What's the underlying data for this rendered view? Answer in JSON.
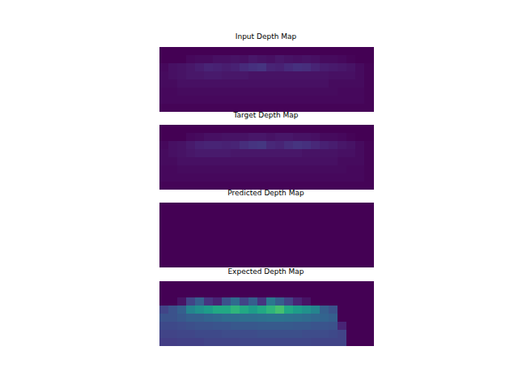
{
  "chart_data": [
    {
      "type": "heatmap",
      "title": "Input Depth Map",
      "color": "viridis",
      "color_range": [
        0,
        1
      ],
      "tick_labels": false,
      "cells": [
        [
          0,
          0,
          0,
          0,
          0,
          0,
          0,
          0,
          0,
          0,
          0,
          0,
          0,
          0,
          0,
          0,
          0,
          0,
          0,
          0,
          0,
          0,
          0,
          0
        ],
        [
          0,
          0,
          0,
          0.02,
          0.03,
          0.03,
          0.04,
          0.04,
          0.05,
          0.04,
          0.06,
          0.05,
          0.04,
          0.06,
          0.05,
          0.04,
          0.05,
          0.04,
          0.03,
          0.03,
          0.02,
          0.01,
          0,
          0
        ],
        [
          0.02,
          0.04,
          0.05,
          0.06,
          0.08,
          0.1,
          0.09,
          0.08,
          0.09,
          0.12,
          0.14,
          0.15,
          0.1,
          0.09,
          0.12,
          0.14,
          0.13,
          0.1,
          0.08,
          0.07,
          0.06,
          0.05,
          0.03,
          0.01
        ],
        [
          0.03,
          0.04,
          0.05,
          0.06,
          0.06,
          0.07,
          0.07,
          0.06,
          0.06,
          0.06,
          0.05,
          0.05,
          0.05,
          0.05,
          0.05,
          0.05,
          0.05,
          0.05,
          0.05,
          0.04,
          0.04,
          0.04,
          0.03,
          0.01
        ],
        [
          0.03,
          0.03,
          0.04,
          0.04,
          0.04,
          0.04,
          0.04,
          0.04,
          0.04,
          0.04,
          0.04,
          0.04,
          0.04,
          0.04,
          0.04,
          0.04,
          0.04,
          0.04,
          0.04,
          0.03,
          0.03,
          0.03,
          0.03,
          0.01
        ],
        [
          0.02,
          0.02,
          0.03,
          0.03,
          0.03,
          0.03,
          0.03,
          0.03,
          0.03,
          0.03,
          0.03,
          0.03,
          0.03,
          0.03,
          0.03,
          0.03,
          0.03,
          0.03,
          0.03,
          0.03,
          0.02,
          0.02,
          0.02,
          0.01
        ],
        [
          0.02,
          0.02,
          0.02,
          0.02,
          0.02,
          0.02,
          0.02,
          0.02,
          0.02,
          0.02,
          0.02,
          0.02,
          0.02,
          0.02,
          0.02,
          0.02,
          0.02,
          0.02,
          0.02,
          0.02,
          0.02,
          0.02,
          0.02,
          0.01
        ],
        [
          0.01,
          0.01,
          0.01,
          0.01,
          0.01,
          0.01,
          0.01,
          0.01,
          0.01,
          0.01,
          0.01,
          0.01,
          0.01,
          0.01,
          0.01,
          0.01,
          0.01,
          0.01,
          0.01,
          0.01,
          0.01,
          0.01,
          0.01,
          0.01
        ]
      ]
    },
    {
      "type": "heatmap",
      "title": "Target Depth Map",
      "color": "viridis",
      "color_range": [
        0,
        1
      ],
      "tick_labels": false,
      "cells": [
        [
          0,
          0,
          0,
          0,
          0,
          0,
          0,
          0,
          0,
          0,
          0,
          0,
          0,
          0,
          0,
          0,
          0,
          0,
          0,
          0,
          0,
          0,
          0,
          0
        ],
        [
          0,
          0,
          0,
          0.02,
          0.03,
          0.04,
          0.04,
          0.05,
          0.05,
          0.05,
          0.06,
          0.06,
          0.05,
          0.06,
          0.06,
          0.05,
          0.05,
          0.04,
          0.03,
          0.03,
          0.02,
          0.01,
          0,
          0
        ],
        [
          0.02,
          0.04,
          0.05,
          0.07,
          0.09,
          0.1,
          0.1,
          0.09,
          0.1,
          0.13,
          0.15,
          0.16,
          0.11,
          0.1,
          0.13,
          0.15,
          0.14,
          0.11,
          0.09,
          0.08,
          0.06,
          0.05,
          0.03,
          0.01
        ],
        [
          0.03,
          0.04,
          0.05,
          0.06,
          0.07,
          0.07,
          0.07,
          0.07,
          0.06,
          0.06,
          0.06,
          0.06,
          0.06,
          0.06,
          0.06,
          0.06,
          0.05,
          0.05,
          0.05,
          0.05,
          0.04,
          0.04,
          0.03,
          0.01
        ],
        [
          0.03,
          0.03,
          0.04,
          0.04,
          0.04,
          0.04,
          0.04,
          0.04,
          0.04,
          0.04,
          0.04,
          0.04,
          0.04,
          0.04,
          0.04,
          0.04,
          0.04,
          0.04,
          0.04,
          0.04,
          0.03,
          0.03,
          0.03,
          0.01
        ],
        [
          0.02,
          0.02,
          0.03,
          0.03,
          0.03,
          0.03,
          0.03,
          0.03,
          0.03,
          0.03,
          0.03,
          0.03,
          0.03,
          0.03,
          0.03,
          0.03,
          0.03,
          0.03,
          0.03,
          0.03,
          0.03,
          0.02,
          0.02,
          0.01
        ],
        [
          0.02,
          0.02,
          0.02,
          0.02,
          0.02,
          0.02,
          0.02,
          0.02,
          0.02,
          0.02,
          0.02,
          0.02,
          0.02,
          0.02,
          0.02,
          0.02,
          0.02,
          0.02,
          0.02,
          0.02,
          0.02,
          0.02,
          0.02,
          0.01
        ],
        [
          0.01,
          0.01,
          0.01,
          0.01,
          0.01,
          0.01,
          0.01,
          0.01,
          0.01,
          0.01,
          0.01,
          0.01,
          0.01,
          0.01,
          0.01,
          0.01,
          0.01,
          0.01,
          0.01,
          0.01,
          0.01,
          0.01,
          0.01,
          0.01
        ]
      ]
    },
    {
      "type": "heatmap",
      "title": "Predicted Depth Map",
      "color": "viridis",
      "color_range": [
        0,
        1
      ],
      "tick_labels": false,
      "cells": [
        [
          0,
          0,
          0,
          0,
          0,
          0,
          0,
          0,
          0,
          0,
          0,
          0,
          0,
          0,
          0,
          0,
          0,
          0,
          0,
          0,
          0,
          0,
          0,
          0
        ],
        [
          0,
          0,
          0,
          0,
          0,
          0,
          0,
          0,
          0,
          0,
          0,
          0,
          0,
          0,
          0,
          0,
          0,
          0,
          0,
          0,
          0,
          0,
          0,
          0
        ],
        [
          0,
          0,
          0,
          0,
          0,
          0,
          0,
          0,
          0,
          0,
          0,
          0,
          0,
          0,
          0,
          0,
          0,
          0,
          0,
          0,
          0,
          0,
          0,
          0
        ],
        [
          0,
          0,
          0,
          0,
          0,
          0,
          0,
          0,
          0,
          0,
          0,
          0,
          0,
          0,
          0,
          0,
          0,
          0,
          0,
          0,
          0,
          0,
          0,
          0
        ],
        [
          0,
          0,
          0,
          0,
          0,
          0,
          0,
          0,
          0,
          0,
          0,
          0,
          0,
          0,
          0,
          0,
          0,
          0,
          0,
          0,
          0,
          0,
          0,
          0
        ],
        [
          0,
          0,
          0,
          0,
          0,
          0,
          0,
          0,
          0,
          0,
          0,
          0,
          0,
          0,
          0,
          0,
          0,
          0,
          0,
          0,
          0,
          0,
          0,
          0
        ],
        [
          0,
          0,
          0,
          0,
          0,
          0,
          0,
          0,
          0,
          0,
          0,
          0,
          0,
          0,
          0,
          0,
          0,
          0,
          0,
          0,
          0,
          0,
          0,
          0
        ],
        [
          0,
          0,
          0,
          0,
          0,
          0,
          0,
          0,
          0,
          0,
          0,
          0,
          0,
          0,
          0,
          0,
          0,
          0,
          0,
          0,
          0,
          0,
          0,
          0
        ]
      ]
    },
    {
      "type": "heatmap",
      "title": "Expected Depth Map",
      "color": "viridis",
      "color_range": [
        0,
        1
      ],
      "tick_labels": false,
      "cells": [
        [
          0,
          0,
          0,
          0,
          0,
          0,
          0,
          0,
          0,
          0,
          0,
          0,
          0,
          0,
          0,
          0,
          0,
          0,
          0,
          0,
          0,
          0,
          0,
          0
        ],
        [
          0,
          0,
          0,
          0,
          0,
          0,
          0,
          0,
          0,
          0,
          0,
          0,
          0,
          0,
          0,
          0,
          0,
          0,
          0,
          0,
          0,
          0,
          0,
          0
        ],
        [
          0,
          0,
          0.05,
          0.2,
          0.3,
          0.15,
          0.1,
          0.25,
          0.35,
          0.2,
          0.3,
          0.15,
          0.4,
          0.3,
          0.2,
          0.1,
          0.05,
          0,
          0,
          0,
          0,
          0,
          0,
          0
        ],
        [
          0.2,
          0.25,
          0.3,
          0.45,
          0.5,
          0.55,
          0.6,
          0.6,
          0.65,
          0.6,
          0.55,
          0.6,
          0.65,
          0.7,
          0.6,
          0.55,
          0.5,
          0.45,
          0.3,
          0.25,
          0,
          0,
          0,
          0
        ],
        [
          0.25,
          0.25,
          0.27,
          0.3,
          0.3,
          0.32,
          0.33,
          0.35,
          0.35,
          0.36,
          0.36,
          0.37,
          0.38,
          0.38,
          0.37,
          0.36,
          0.35,
          0.33,
          0.32,
          0.3,
          0,
          0,
          0,
          0
        ],
        [
          0.22,
          0.22,
          0.23,
          0.24,
          0.25,
          0.25,
          0.26,
          0.26,
          0.27,
          0.27,
          0.27,
          0.28,
          0.28,
          0.28,
          0.28,
          0.27,
          0.27,
          0.26,
          0.26,
          0.25,
          0.1,
          0,
          0,
          0
        ],
        [
          0.2,
          0.2,
          0.21,
          0.21,
          0.22,
          0.22,
          0.22,
          0.23,
          0.23,
          0.23,
          0.23,
          0.24,
          0.24,
          0.24,
          0.24,
          0.24,
          0.23,
          0.23,
          0.23,
          0.22,
          0.2,
          0,
          0,
          0
        ],
        [
          0.18,
          0.18,
          0.19,
          0.19,
          0.19,
          0.2,
          0.2,
          0.2,
          0.2,
          0.21,
          0.21,
          0.21,
          0.21,
          0.21,
          0.21,
          0.21,
          0.21,
          0.2,
          0.2,
          0.2,
          0.2,
          0,
          0,
          0
        ]
      ]
    }
  ]
}
